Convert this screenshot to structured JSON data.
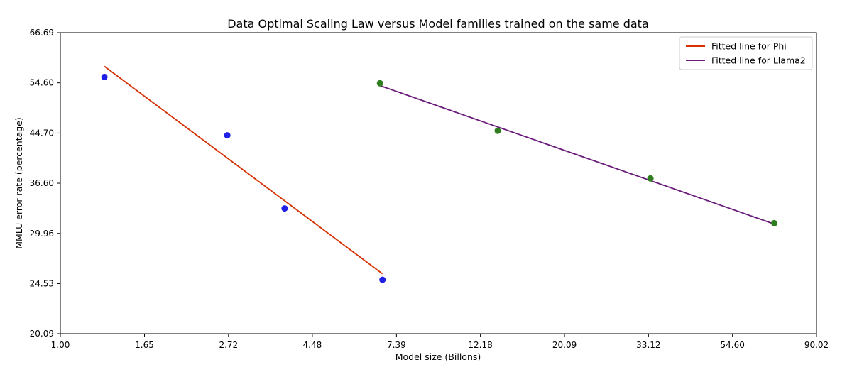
{
  "chart_data": {
    "type": "scatter",
    "title": "Data Optimal Scaling Law versus Model families trained on the same data",
    "xlabel": "Model size (Billons)",
    "ylabel": "MMLU error rate (percentage)",
    "x_scale": "log",
    "y_scale": "log",
    "xlim": [
      1.0,
      90.02
    ],
    "ylim": [
      20.09,
      66.69
    ],
    "x_ticks": [
      "1.00",
      "1.65",
      "2.72",
      "4.48",
      "7.39",
      "12.18",
      "20.09",
      "33.12",
      "54.60",
      "90.02"
    ],
    "y_ticks": [
      "20.09",
      "24.53",
      "29.96",
      "36.60",
      "44.70",
      "54.60",
      "66.69"
    ],
    "grid": false,
    "legend_position": "top-right",
    "scatter_series": [
      {
        "color": "#1f1fe6",
        "points": [
          [
            1.3,
            55.9
          ],
          [
            2.7,
            44.3
          ],
          [
            3.8,
            33.1
          ],
          [
            6.8,
            24.9
          ]
        ]
      },
      {
        "color": "#2e7d1f",
        "points": [
          [
            6.7,
            54.5
          ],
          [
            13.5,
            45.1
          ],
          [
            33.5,
            37.3
          ],
          [
            70.0,
            31.2
          ]
        ]
      }
    ],
    "series": [
      {
        "name": "Fitted line for Phi",
        "type": "line",
        "color": "#d62f00",
        "points": [
          [
            1.3,
            58.3
          ],
          [
            6.8,
            25.5
          ]
        ]
      },
      {
        "name": "Fitted line for Llama2",
        "type": "line",
        "color": "#6a1b7a",
        "points": [
          [
            6.7,
            54.0
          ],
          [
            70.0,
            31.1
          ]
        ]
      }
    ]
  }
}
